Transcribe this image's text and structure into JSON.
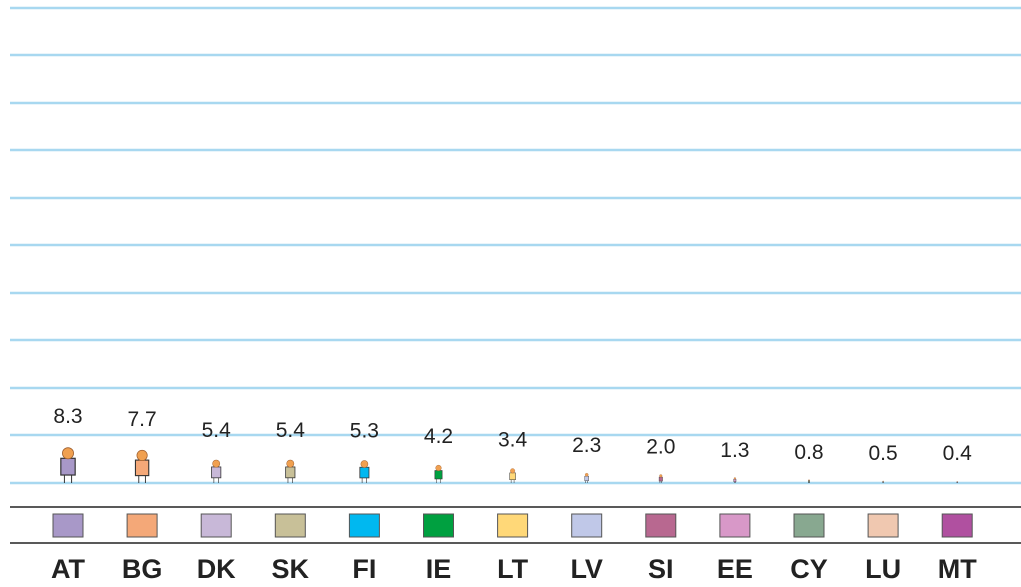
{
  "chart_data": {
    "type": "pictogram",
    "categories": [
      "AT",
      "BG",
      "DK",
      "SK",
      "FI",
      "IE",
      "LT",
      "LV",
      "SI",
      "EE",
      "CY",
      "LU",
      "MT"
    ],
    "values": [
      8.3,
      7.7,
      5.4,
      5.4,
      5.3,
      4.2,
      3.4,
      2.3,
      2.0,
      1.3,
      0.8,
      0.5,
      0.4
    ],
    "value_labels": [
      "8.3",
      "7.7",
      "5.4",
      "5.4",
      "5.3",
      "4.2",
      "3.4",
      "2.3",
      "2.0",
      "1.3",
      "0.8",
      "0.5",
      "0.4"
    ],
    "colors": [
      "#a898c8",
      "#f4a878",
      "#c8b8d8",
      "#c8c098",
      "#00b8f0",
      "#00a040",
      "#ffd878",
      "#c0c8e8",
      "#b86890",
      "#d898c8",
      "#88a890",
      "#f0c8b0",
      "#b050a0"
    ]
  }
}
